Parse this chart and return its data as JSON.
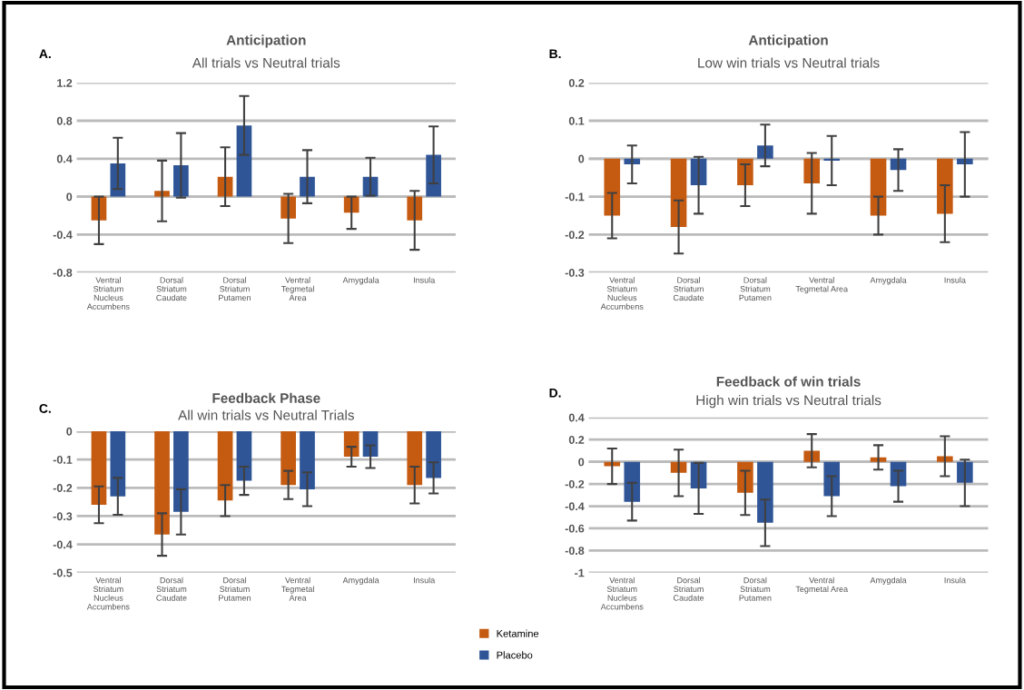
{
  "chart_data": [
    {
      "type": "bar",
      "title": "Anticipation",
      "subtitle": "All trials vs Neutral trials",
      "annotations": [
        "A."
      ],
      "categories": [
        "Ventral\nStriatum\nNucleus\nAccumbens",
        "Dorsal\nStriatum\nCaudate",
        "Dorsal\nStriatum\nPutamen",
        "Ventral\nTegmetal\nArea",
        "Amygdala",
        "Insula"
      ],
      "series": [
        {
          "name": "Ketamine",
          "color": "#c55a11",
          "values": [
            -0.25,
            0.06,
            0.21,
            -0.23,
            -0.17,
            -0.25
          ],
          "errors": [
            0.25,
            0.32,
            0.31,
            0.26,
            0.17,
            0.31
          ]
        },
        {
          "name": "Placebo",
          "color": "#2f5597",
          "values": [
            0.35,
            0.33,
            0.75,
            0.21,
            0.21,
            0.44
          ],
          "errors": [
            0.27,
            0.34,
            0.31,
            0.28,
            0.2,
            0.3
          ]
        }
      ],
      "ylim": [
        -0.8,
        1.2
      ],
      "yticks": [
        -0.8,
        -0.4,
        0,
        0.4,
        0.8,
        1.2
      ],
      "grid": "y",
      "legend": "bottom right"
    },
    {
      "type": "bar",
      "title": "Anticipation",
      "subtitle": "Low win trials vs Neutral trials",
      "annotations": [
        "B."
      ],
      "categories": [
        "Ventral\nStriatum\nNucleus\nAccumbens",
        "Dorsal\nStriatum\nCaudate",
        "Dorsal\nStriatum\nPutamen",
        "Ventral\nTegmetal Area",
        "Amygdala",
        "Insula"
      ],
      "series": [
        {
          "color": "#c55a11",
          "values": [
            -0.15,
            -0.18,
            -0.07,
            -0.065,
            -0.15,
            -0.145
          ],
          "errors": [
            0.06,
            0.07,
            0.055,
            0.08,
            0.05,
            0.075
          ]
        },
        {
          "color": "#2f5597",
          "values": [
            -0.015,
            -0.07,
            0.035,
            -0.005,
            -0.03,
            -0.015
          ],
          "errors": [
            0.05,
            0.075,
            0.055,
            0.065,
            0.055,
            0.085
          ]
        }
      ],
      "ylim": [
        -0.3,
        0.2
      ],
      "yticks": [
        -0.3,
        -0.2,
        -0.1,
        0,
        0.1,
        0.2
      ],
      "grid": "y",
      "legend": false
    },
    {
      "type": "bar",
      "title": "Feedback Phase",
      "subtitle": "All win trials vs Neutral Trials",
      "annotations": [
        "C."
      ],
      "categories": [
        "Ventral\nStriatum\nNucleus\nAccumbens",
        "Dorsal\nStriatum\nCaudate",
        "Dorsal\nStriatum\nPutamen",
        "Ventral\nTegmetal\nArea",
        "Amygdala",
        "Insula"
      ],
      "series": [
        {
          "color": "#c55a11",
          "values": [
            -0.26,
            -0.365,
            -0.245,
            -0.19,
            -0.09,
            -0.19
          ],
          "errors": [
            0.065,
            0.075,
            0.055,
            0.05,
            0.035,
            0.065
          ]
        },
        {
          "color": "#2f5597",
          "values": [
            -0.23,
            -0.285,
            -0.175,
            -0.205,
            -0.09,
            -0.165
          ],
          "errors": [
            0.065,
            0.08,
            0.05,
            0.06,
            0.04,
            0.055
          ]
        }
      ],
      "ylim": [
        -0.5,
        0
      ],
      "yticks": [
        -0.5,
        -0.4,
        -0.3,
        -0.2,
        -0.1,
        0
      ],
      "grid": "y",
      "legend": false
    },
    {
      "type": "bar",
      "title": "Feedback of win trials",
      "subtitle": "High win trials vs Neutral trials",
      "annotations": [
        "D."
      ],
      "categories": [
        "Ventral\nStriatum\nNucleus\nAccumbens",
        "Dorsal\nStriatum\nCaudate",
        "Dorsal\nStriatum\nPutamen",
        "Ventral\nTegmetal Area",
        "Amygdala",
        "Insula"
      ],
      "series": [
        {
          "color": "#c55a11",
          "values": [
            -0.04,
            -0.1,
            -0.28,
            0.1,
            0.04,
            0.05
          ],
          "errors": [
            0.16,
            0.21,
            0.2,
            0.15,
            0.11,
            0.18
          ]
        },
        {
          "color": "#2f5597",
          "values": [
            -0.36,
            -0.24,
            -0.55,
            -0.31,
            -0.22,
            -0.19
          ],
          "errors": [
            0.17,
            0.23,
            0.21,
            0.18,
            0.14,
            0.21
          ]
        }
      ],
      "ylim": [
        -1,
        0.4
      ],
      "yticks": [
        -1,
        -0.8,
        -0.6,
        -0.4,
        -0.2,
        0,
        0.2,
        0.4
      ],
      "grid": "y",
      "legend": false
    }
  ]
}
